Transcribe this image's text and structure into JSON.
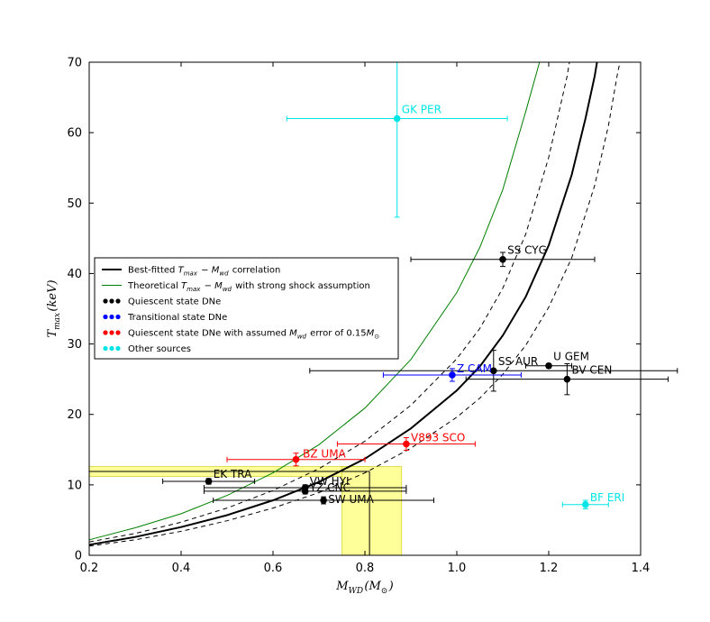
{
  "chart_data": {
    "type": "scatter",
    "title": "",
    "xlabel": "M_WD(M_⊙)",
    "ylabel": "T_max(keV)",
    "xlim": [
      0.2,
      1.4
    ],
    "ylim": [
      0,
      70
    ],
    "xticks": [
      0.2,
      0.4,
      0.6,
      0.8,
      1.0,
      1.2,
      1.4
    ],
    "yticks": [
      0,
      10,
      20,
      30,
      40,
      50,
      60,
      70
    ],
    "xtick_labels": [
      "0.2",
      "0.4",
      "0.6",
      "0.8",
      "1.0",
      "1.2",
      "1.4"
    ],
    "ytick_labels": [
      "0",
      "10",
      "20",
      "30",
      "40",
      "50",
      "60",
      "70"
    ],
    "grid": false,
    "legend_position": "center-left",
    "legend": [
      {
        "key": "fit",
        "kind": "line",
        "color": "#000000",
        "label": "Best-fitted T_max − M_wd correlation"
      },
      {
        "key": "theory",
        "kind": "line",
        "color": "#008000",
        "label": "Theoretical T_max − M_wd with strong shock assumption"
      },
      {
        "key": "quiescent",
        "kind": "dots",
        "color": "#000000",
        "label": "Quiescent state DNe"
      },
      {
        "key": "transitional",
        "kind": "dots",
        "color": "#0000ff",
        "label": "Transitional state DNe"
      },
      {
        "key": "assumed",
        "kind": "dots",
        "color": "#ff0000",
        "label": "Quiescent state DNe with assumed M_wd error of 0.15M_⊙"
      },
      {
        "key": "other",
        "kind": "dots",
        "color": "#00e5e5",
        "label": "Other sources"
      }
    ],
    "colors": {
      "quiescent": "#000000",
      "transitional": "#0000ff",
      "assumed": "#ff0000",
      "other": "#00e5e5",
      "theory": "#008000",
      "highlight": "#ffff99"
    },
    "curves": {
      "fit": [
        [
          0.2,
          1.5
        ],
        [
          0.3,
          2.6
        ],
        [
          0.4,
          4.0
        ],
        [
          0.5,
          5.7
        ],
        [
          0.6,
          7.8
        ],
        [
          0.7,
          10.4
        ],
        [
          0.8,
          13.7
        ],
        [
          0.9,
          18.0
        ],
        [
          1.0,
          23.4
        ],
        [
          1.05,
          26.8
        ],
        [
          1.1,
          31.2
        ],
        [
          1.15,
          36.7
        ],
        [
          1.2,
          44.0
        ],
        [
          1.25,
          54.0
        ],
        [
          1.28,
          62.0
        ],
        [
          1.3,
          68.0
        ],
        [
          1.305,
          70.0
        ]
      ],
      "upper": [
        [
          0.2,
          1.9
        ],
        [
          0.3,
          3.1
        ],
        [
          0.4,
          4.7
        ],
        [
          0.5,
          6.7
        ],
        [
          0.6,
          9.2
        ],
        [
          0.7,
          12.3
        ],
        [
          0.8,
          16.2
        ],
        [
          0.9,
          21.3
        ],
        [
          1.0,
          27.9
        ],
        [
          1.05,
          32.2
        ],
        [
          1.1,
          37.9
        ],
        [
          1.15,
          45.6
        ],
        [
          1.2,
          56.5
        ],
        [
          1.24,
          68.0
        ],
        [
          1.245,
          70.0
        ]
      ],
      "lower": [
        [
          0.2,
          1.3
        ],
        [
          0.3,
          2.2
        ],
        [
          0.4,
          3.4
        ],
        [
          0.5,
          4.9
        ],
        [
          0.6,
          6.7
        ],
        [
          0.7,
          8.9
        ],
        [
          0.8,
          11.7
        ],
        [
          0.9,
          15.2
        ],
        [
          1.0,
          19.6
        ],
        [
          1.05,
          22.3
        ],
        [
          1.1,
          25.7
        ],
        [
          1.15,
          29.8
        ],
        [
          1.2,
          35.2
        ],
        [
          1.25,
          42.2
        ],
        [
          1.3,
          52.5
        ],
        [
          1.33,
          61.0
        ],
        [
          1.35,
          68.5
        ],
        [
          1.355,
          70.0
        ]
      ],
      "theory": [
        [
          0.2,
          2.2
        ],
        [
          0.3,
          3.9
        ],
        [
          0.4,
          5.9
        ],
        [
          0.5,
          8.5
        ],
        [
          0.6,
          11.7
        ],
        [
          0.7,
          15.7
        ],
        [
          0.8,
          20.9
        ],
        [
          0.9,
          27.8
        ],
        [
          1.0,
          37.3
        ],
        [
          1.05,
          43.7
        ],
        [
          1.1,
          51.9
        ],
        [
          1.15,
          63.0
        ],
        [
          1.18,
          70.0
        ]
      ]
    },
    "highlight": {
      "hband_y": [
        11.2,
        12.6
      ],
      "hband_x_end": 0.81,
      "vband_x": [
        0.75,
        0.88
      ],
      "vband_y_top": 12.6,
      "crosshair_x": 0.81,
      "crosshair_y": 11.9
    },
    "sources": [
      {
        "name": "GK PER",
        "group": "other",
        "x": 0.87,
        "y": 62.0,
        "xerr": [
          0.24,
          0.24
        ],
        "yerr": [
          14.0,
          8.0
        ],
        "label_dx": 0.01,
        "label_dy": 0.8,
        "anchor": "start"
      },
      {
        "name": "SS CYG",
        "group": "quiescent",
        "x": 1.1,
        "y": 42.0,
        "xerr": [
          0.2,
          0.2
        ],
        "yerr": [
          1.0,
          1.0
        ],
        "label_dx": 0.01,
        "label_dy": 0.8,
        "anchor": "start"
      },
      {
        "name": "SS AUR",
        "group": "quiescent",
        "x": 1.08,
        "y": 26.2,
        "xerr": [
          0.4,
          0.4
        ],
        "yerr": [
          2.9,
          2.9
        ],
        "label_dx": 0.01,
        "label_dy": 0.8,
        "anchor": "start"
      },
      {
        "name": "U GEM",
        "group": "quiescent",
        "x": 1.2,
        "y": 26.9,
        "xerr": [
          0.05,
          0.05
        ],
        "yerr": [
          0.3,
          0.3
        ],
        "label_dx": 0.01,
        "label_dy": 0.8,
        "anchor": "start"
      },
      {
        "name": "BV CEN",
        "group": "quiescent",
        "x": 1.24,
        "y": 25.0,
        "xerr": [
          0.22,
          0.22
        ],
        "yerr": [
          2.2,
          2.2
        ],
        "label_dx": 0.01,
        "label_dy": 0.8,
        "anchor": "start"
      },
      {
        "name": "Z CAM",
        "group": "transitional",
        "x": 0.99,
        "y": 25.6,
        "xerr": [
          0.15,
          0.15
        ],
        "yerr": [
          0.9,
          0.9
        ],
        "label_dx": 0.01,
        "label_dy": 0.4,
        "anchor": "start"
      },
      {
        "name": "V893 SCO",
        "group": "assumed",
        "x": 0.89,
        "y": 15.8,
        "xerr": [
          0.15,
          0.15
        ],
        "yerr": [
          0.9,
          0.9
        ],
        "label_dx": 0.01,
        "label_dy": 0.4,
        "anchor": "start"
      },
      {
        "name": "BZ UMA",
        "group": "assumed",
        "x": 0.65,
        "y": 13.6,
        "xerr": [
          0.15,
          0.15
        ],
        "yerr": [
          0.9,
          0.9
        ],
        "label_dx": 0.015,
        "label_dy": 0.3,
        "anchor": "start"
      },
      {
        "name": "EK TRA",
        "group": "quiescent",
        "x": 0.46,
        "y": 10.5,
        "xerr": [
          0.1,
          0.1
        ],
        "yerr": [
          0.4,
          0.4
        ],
        "label_dx": 0.01,
        "label_dy": 0.5,
        "anchor": "start"
      },
      {
        "name": "VW HYI",
        "group": "quiescent",
        "x": 0.67,
        "y": 9.6,
        "xerr": [
          0.22,
          0.22
        ],
        "yerr": [
          0.4,
          0.4
        ],
        "label_dx": 0.01,
        "label_dy": 0.4,
        "anchor": "start"
      },
      {
        "name": "YZ CNC",
        "group": "quiescent",
        "x": 0.67,
        "y": 9.1,
        "xerr": [
          0.22,
          0.22
        ],
        "yerr": [
          0.4,
          0.4
        ],
        "label_dx": 0.01,
        "label_dy": 0.0,
        "anchor": "start"
      },
      {
        "name": "SW UMA",
        "group": "quiescent",
        "x": 0.71,
        "y": 7.8,
        "xerr": [
          0.24,
          0.24
        ],
        "yerr": [
          0.5,
          0.5
        ],
        "label_dx": 0.01,
        "label_dy": -0.4,
        "anchor": "start"
      },
      {
        "name": "BF ERI",
        "group": "other",
        "x": 1.28,
        "y": 7.2,
        "xerr": [
          0.05,
          0.05
        ],
        "yerr": [
          0.6,
          0.6
        ],
        "label_dx": 0.01,
        "label_dy": 0.5,
        "anchor": "start"
      }
    ]
  }
}
